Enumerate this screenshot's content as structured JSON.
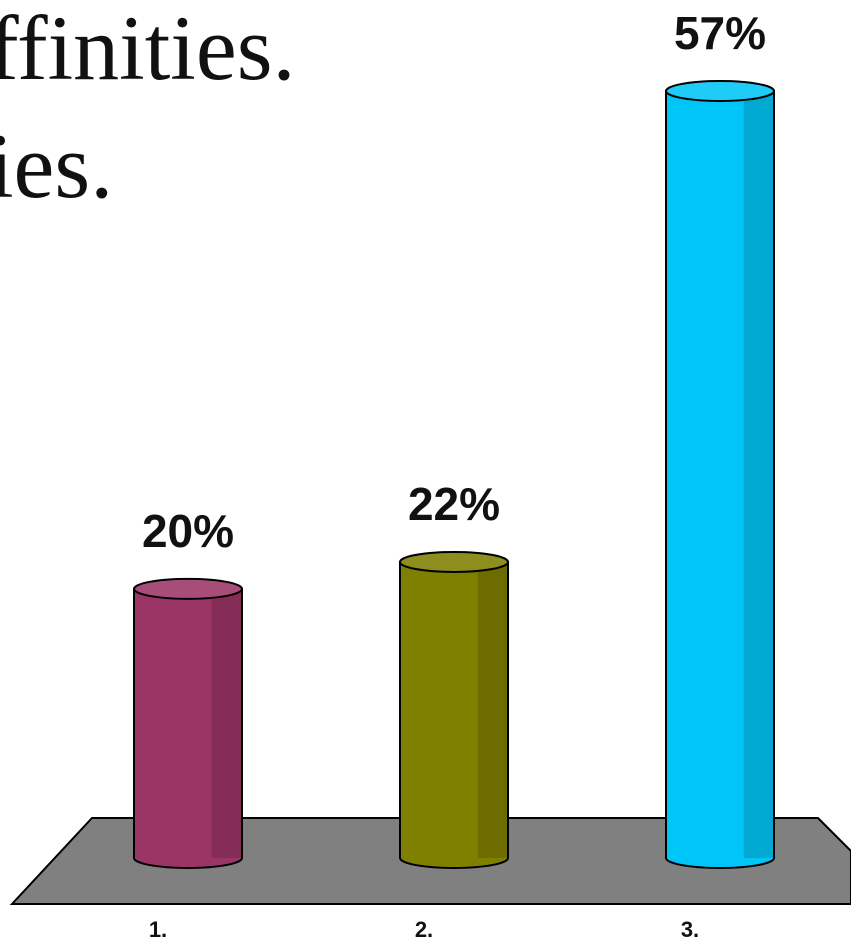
{
  "slide": {
    "text_line_1": "ffinities.",
    "text_line_2": "ies."
  },
  "chart_data": {
    "type": "bar",
    "style": "3d-cylinder",
    "categories": [
      "1.",
      "2.",
      "3."
    ],
    "values": [
      20,
      22,
      57
    ],
    "value_labels": [
      "20%",
      "22%",
      "57%"
    ],
    "ylim": [
      0,
      57
    ],
    "grid": false,
    "colors": [
      "#9B3566",
      "#7F7F00",
      "#00C5F7"
    ],
    "floor_color": "#808080"
  }
}
